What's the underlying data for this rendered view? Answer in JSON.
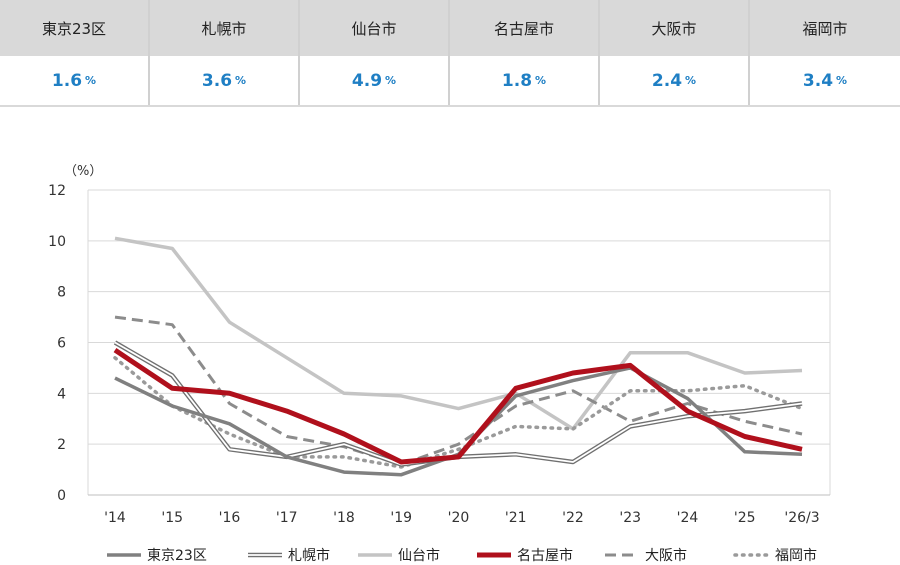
{
  "summary": {
    "cities": [
      {
        "name": "東京23区",
        "value": "1.6",
        "unit": "%"
      },
      {
        "name": "札幌市",
        "value": "3.6",
        "unit": "%"
      },
      {
        "name": "仙台市",
        "value": "4.9",
        "unit": "%"
      },
      {
        "name": "名古屋市",
        "value": "1.8",
        "unit": "%"
      },
      {
        "name": "大阪市",
        "value": "2.4",
        "unit": "%"
      },
      {
        "name": "福岡市",
        "value": "3.4",
        "unit": "%"
      }
    ]
  },
  "chart_data": {
    "type": "line",
    "ylabel": "（%）",
    "ylim": [
      0,
      12
    ],
    "yticks": [
      0,
      2,
      4,
      6,
      8,
      10,
      12
    ],
    "grid": true,
    "legend_position": "bottom",
    "categories": [
      "'14",
      "'15",
      "'16",
      "'17",
      "'18",
      "'19",
      "'20",
      "'21",
      "'22",
      "'23",
      "'24",
      "'25",
      "'26/3"
    ],
    "series": [
      {
        "name": "東京23区",
        "color": "#808080",
        "style": "solid-thick",
        "values": [
          4.6,
          3.5,
          2.8,
          1.5,
          0.9,
          0.8,
          1.6,
          3.9,
          4.5,
          5.0,
          3.8,
          1.7,
          1.6
        ]
      },
      {
        "name": "札幌市",
        "color": "#707070",
        "style": "double",
        "values": [
          6.0,
          4.7,
          1.8,
          1.5,
          2.0,
          1.2,
          1.5,
          1.6,
          1.3,
          2.7,
          3.1,
          3.3,
          3.6
        ]
      },
      {
        "name": "仙台市",
        "color": "#c4c4c4",
        "style": "solid-thick",
        "values": [
          10.1,
          9.7,
          6.8,
          5.4,
          4.0,
          3.9,
          3.4,
          4.0,
          2.6,
          5.6,
          5.6,
          4.8,
          4.9
        ]
      },
      {
        "name": "名古屋市",
        "color": "#b0101c",
        "style": "solid-bold",
        "values": [
          5.7,
          4.2,
          4.0,
          3.3,
          2.4,
          1.3,
          1.5,
          4.2,
          4.8,
          5.1,
          3.3,
          2.3,
          1.8
        ]
      },
      {
        "name": "大阪市",
        "color": "#8c8c8c",
        "style": "dashed",
        "values": [
          7.0,
          6.7,
          3.6,
          2.3,
          1.9,
          1.2,
          2.0,
          3.5,
          4.1,
          2.9,
          3.6,
          2.9,
          2.4
        ]
      },
      {
        "name": "福岡市",
        "color": "#9a9a9a",
        "style": "dotted",
        "values": [
          5.4,
          3.5,
          2.4,
          1.5,
          1.5,
          1.1,
          1.8,
          2.7,
          2.6,
          4.1,
          4.1,
          4.3,
          3.4
        ]
      }
    ]
  }
}
